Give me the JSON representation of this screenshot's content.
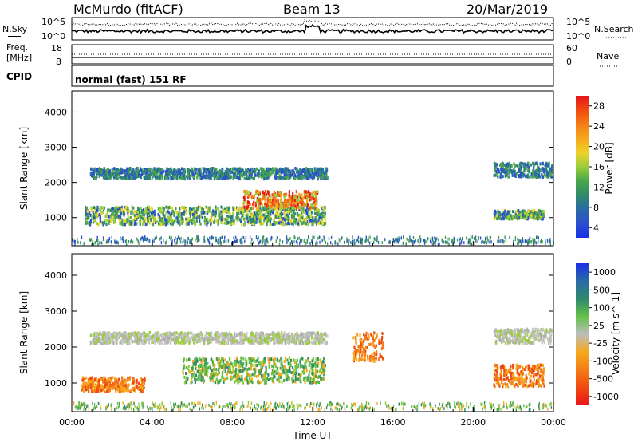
{
  "header": {
    "station": "McMurdo (fitACF)",
    "beam": "Beam 13",
    "date": "20/Mar/2019"
  },
  "summary_panels": {
    "nsky_label": "N.Sky",
    "nsky_ticks": [
      "10^5",
      "10^0"
    ],
    "nsearch_label": "N.Search",
    "nsearch_ticks": [
      "10^5",
      "10^0"
    ],
    "freq_label_1": "Freq.",
    "freq_label_2": "[MHz]",
    "freq_ticks": [
      "18",
      "8"
    ],
    "nave_label": "Nave",
    "nave_ticks": [
      "60",
      "0"
    ],
    "cpid_label": "CPID",
    "cpid_text": "normal (fast) 151 RF"
  },
  "colors": {
    "frame": "#000000",
    "scatter_blue": "#2a4fd0",
    "scatter_green": "#3aa04a",
    "scatter_red": "#e02020",
    "ground_scatter": "#bdbdbd"
  },
  "chart_data": [
    {
      "type": "heatmap",
      "panel": "power",
      "ylabel": "Slant Range [km]",
      "yticks": [
        1000,
        2000,
        3000,
        4000
      ],
      "ylim": [
        200,
        4600
      ],
      "xlim_hours": [
        0,
        24
      ],
      "colorbar": {
        "label": "Power [dB]",
        "ticks": [
          "28",
          "24",
          "20",
          "16",
          "12",
          "8",
          "4"
        ],
        "colors": [
          "#e8141c",
          "#f04a10",
          "#f57c14",
          "#f5a81c",
          "#f0d22a",
          "#9acd3a",
          "#4aa64a",
          "#2e8a6a",
          "#2a6aa8",
          "#2a4fd0",
          "#1a30e6"
        ]
      },
      "features": [
        {
          "x_start": 0.9,
          "x_end": 12.7,
          "range_center": 2250,
          "range_half": 150,
          "level": "low"
        },
        {
          "x_start": 0.6,
          "x_end": 12.6,
          "range_center": 1050,
          "range_half": 250,
          "level": "mid"
        },
        {
          "x_start": 8.5,
          "x_end": 12.2,
          "range_center": 1500,
          "range_half": 250,
          "level": "high"
        },
        {
          "x_start": 21.0,
          "x_end": 23.9,
          "range_center": 2350,
          "range_half": 200,
          "level": "low"
        },
        {
          "x_start": 21.0,
          "x_end": 23.5,
          "range_center": 1080,
          "range_half": 120,
          "level": "mid"
        }
      ]
    },
    {
      "type": "heatmap",
      "panel": "velocity",
      "xlabel": "Time UT",
      "ylabel": "Slant Range [km]",
      "yticks": [
        1000,
        2000,
        3000,
        4000
      ],
      "ylim": [
        200,
        4600
      ],
      "xlim_hours": [
        0,
        24
      ],
      "xticks": [
        "00:00",
        "04:00",
        "08:00",
        "12:00",
        "16:00",
        "20:00",
        "00:00"
      ],
      "colorbar": {
        "label": "Velocity [m s^-1]",
        "ticks": [
          "1000",
          "500",
          "100",
          "25",
          "-25",
          "-100",
          "-500",
          "-1000"
        ],
        "colors": [
          "#1a30e6",
          "#2a6aa8",
          "#2e8a6a",
          "#66c04a",
          "#bdbdbd",
          "#f5a81c",
          "#f57c14",
          "#f04a10",
          "#e8141c"
        ]
      },
      "features": [
        {
          "x_start": 0.9,
          "x_end": 12.7,
          "range_center": 2250,
          "range_half": 150,
          "class": "ground"
        },
        {
          "x_start": 0.4,
          "x_end": 3.6,
          "range_center": 950,
          "range_half": 200,
          "class": "toward"
        },
        {
          "x_start": 5.5,
          "x_end": 12.6,
          "range_center": 1350,
          "range_half": 350,
          "class": "slow"
        },
        {
          "x_start": 14.0,
          "x_end": 15.5,
          "range_center": 2000,
          "range_half": 400,
          "class": "toward"
        },
        {
          "x_start": 21.0,
          "x_end": 23.9,
          "range_center": 2300,
          "range_half": 200,
          "class": "ground"
        },
        {
          "x_start": 21.0,
          "x_end": 23.5,
          "range_center": 1200,
          "range_half": 300,
          "class": "toward"
        }
      ]
    }
  ]
}
